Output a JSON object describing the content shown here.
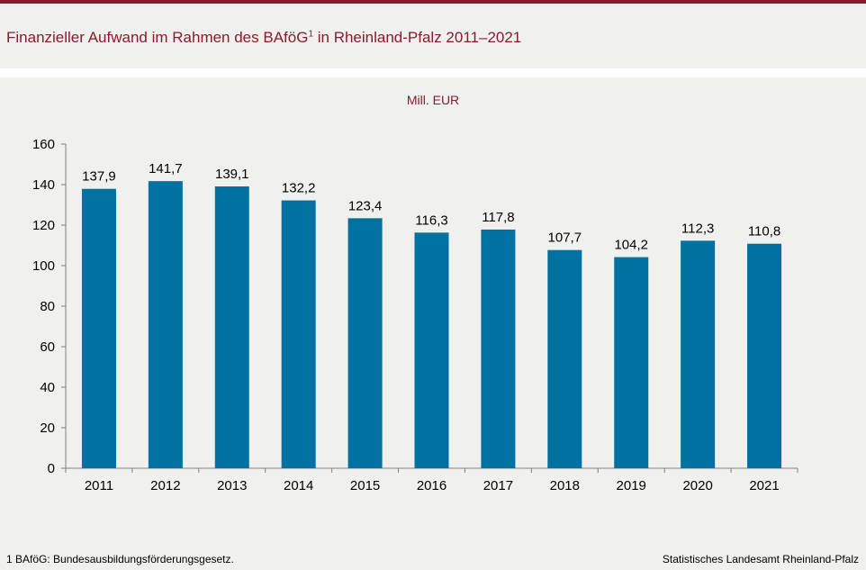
{
  "title": {
    "text": "Finanzieller Aufwand im Rahmen des BAföG",
    "sup": "1",
    "suffix": " in Rheinland-Pfalz 2011–2021"
  },
  "colors": {
    "accent": "#8b1a2e",
    "bar": "#0071a1",
    "panel": "#f0f0ef"
  },
  "chart_data": {
    "type": "bar",
    "ylabel": "Mill. EUR",
    "categories": [
      "2011",
      "2012",
      "2013",
      "2014",
      "2015",
      "2016",
      "2017",
      "2018",
      "2019",
      "2020",
      "2021"
    ],
    "values": [
      137.9,
      141.7,
      139.1,
      132.2,
      123.4,
      116.3,
      117.8,
      107.7,
      104.2,
      112.3,
      110.8
    ],
    "data_labels": [
      "137,9",
      "141,7",
      "139,1",
      "132,2",
      "123,4",
      "116,3",
      "117,8",
      "107,7",
      "104,2",
      "112,3",
      "110,8"
    ],
    "ylim": [
      0,
      160
    ],
    "yticks": [
      "0",
      "20",
      "40",
      "60",
      "80",
      "100",
      "120",
      "140",
      "160"
    ],
    "grid": false,
    "legend": "none"
  },
  "footnote": "1 BAföG: Bundesausbildungsförderungsgesetz.",
  "source": "Statistisches Landesamt Rheinland-Pfalz"
}
